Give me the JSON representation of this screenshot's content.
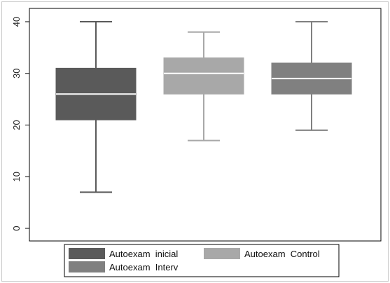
{
  "chart_data": {
    "type": "box",
    "title": "",
    "xlabel": "",
    "ylabel": "",
    "ylim": [
      0,
      40
    ],
    "yticks": [
      0,
      10,
      20,
      30,
      40
    ],
    "grid": false,
    "legend_position": "bottom",
    "series": [
      {
        "name": "Autoexam  inicial",
        "min": 7,
        "q1": 21,
        "median": 26,
        "q3": 31,
        "max": 40,
        "color": "#5a5a5a"
      },
      {
        "name": "Autoexam  Control",
        "min": 17,
        "q1": 26,
        "median": 30,
        "q3": 33,
        "max": 38,
        "color": "#a8a8a8"
      },
      {
        "name": "Autoexam  Interv",
        "min": 19,
        "q1": 26,
        "median": 29,
        "q3": 32,
        "max": 40,
        "color": "#808080"
      }
    ]
  }
}
